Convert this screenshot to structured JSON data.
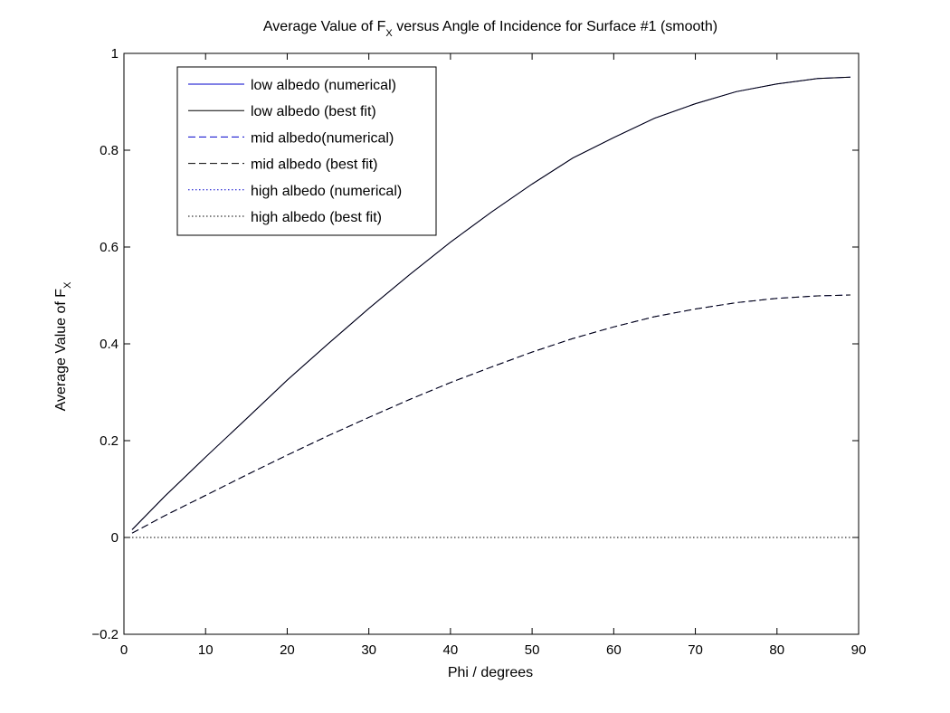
{
  "chart_data": {
    "type": "line",
    "title_main_before": "Average Value of F",
    "title_sub": "X",
    "title_main_after": " versus Angle of Incidence for Surface #1 (smooth)",
    "xlabel": "Phi / degrees",
    "ylabel_main": "Average Value of F",
    "ylabel_sub": "X",
    "xlim": [
      0,
      90
    ],
    "ylim": [
      -0.2,
      1
    ],
    "xticks": [
      0,
      10,
      20,
      30,
      40,
      50,
      60,
      70,
      80,
      90
    ],
    "yticks": [
      -0.2,
      0,
      0.2,
      0.4,
      0.6,
      0.8,
      1
    ],
    "xtick_labels": [
      "0",
      "10",
      "20",
      "30",
      "40",
      "50",
      "60",
      "70",
      "80",
      "90"
    ],
    "ytick_labels": [
      "−0.2",
      "0",
      "0.2",
      "0.4",
      "0.6",
      "0.8",
      "1"
    ],
    "grid": false,
    "legend_position": "top-left",
    "x": [
      1,
      5,
      10,
      15,
      20,
      25,
      30,
      35,
      40,
      45,
      50,
      55,
      60,
      65,
      70,
      75,
      80,
      85,
      89
    ],
    "series": [
      {
        "name": "low albedo (numerical)",
        "color": "#0000cc",
        "dash": "solid",
        "values": [
          0.016,
          0.085,
          0.166,
          0.245,
          0.325,
          0.4,
          0.473,
          0.543,
          0.61,
          0.672,
          0.73,
          0.784,
          0.826,
          0.866,
          0.896,
          0.921,
          0.937,
          0.948,
          0.951
        ]
      },
      {
        "name": "low albedo (best fit)",
        "color": "#000000",
        "dash": "solid",
        "values": [
          0.016,
          0.085,
          0.166,
          0.245,
          0.325,
          0.4,
          0.473,
          0.543,
          0.61,
          0.672,
          0.73,
          0.784,
          0.826,
          0.866,
          0.896,
          0.921,
          0.937,
          0.948,
          0.951
        ]
      },
      {
        "name": "mid albedo(numerical)",
        "color": "#0000cc",
        "dash": "dashed",
        "values": [
          0.009,
          0.045,
          0.087,
          0.129,
          0.17,
          0.21,
          0.248,
          0.285,
          0.32,
          0.352,
          0.383,
          0.411,
          0.435,
          0.456,
          0.472,
          0.485,
          0.494,
          0.499,
          0.501
        ]
      },
      {
        "name": "mid albedo (best fit)",
        "color": "#000000",
        "dash": "dashed",
        "values": [
          0.009,
          0.045,
          0.087,
          0.129,
          0.17,
          0.21,
          0.248,
          0.285,
          0.32,
          0.352,
          0.383,
          0.411,
          0.435,
          0.456,
          0.472,
          0.485,
          0.494,
          0.499,
          0.501
        ]
      },
      {
        "name": "high albedo (numerical)",
        "color": "#0000cc",
        "dash": "dotted",
        "values": [
          0,
          0,
          0,
          0,
          0,
          0,
          0,
          0,
          0,
          0,
          0,
          0,
          0,
          0,
          0,
          0,
          0,
          0,
          0
        ]
      },
      {
        "name": "high albedo (best fit)",
        "color": "#000000",
        "dash": "dotted",
        "values": [
          0,
          0,
          0,
          0,
          0,
          0,
          0,
          0,
          0,
          0,
          0,
          0,
          0,
          0,
          0,
          0,
          0,
          0,
          0
        ]
      }
    ]
  }
}
